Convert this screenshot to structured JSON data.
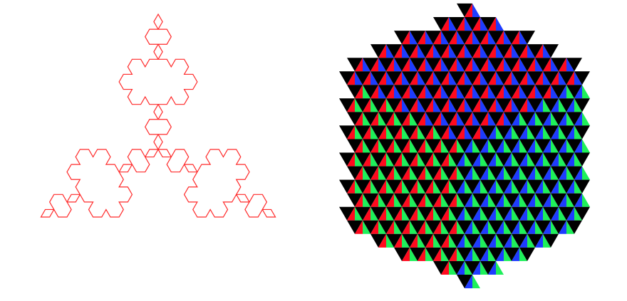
{
  "figures": [
    {
      "kind": "koch-snowflake",
      "stroke_color": "#ff2a2a",
      "fill_color": "#ffffff",
      "iterations": 3
    },
    {
      "kind": "triangle-tiling",
      "palette": {
        "dark": "#000000",
        "red": "#ff0a1e",
        "blue": "#1e3cff",
        "green": "#1ef05a"
      }
    }
  ]
}
